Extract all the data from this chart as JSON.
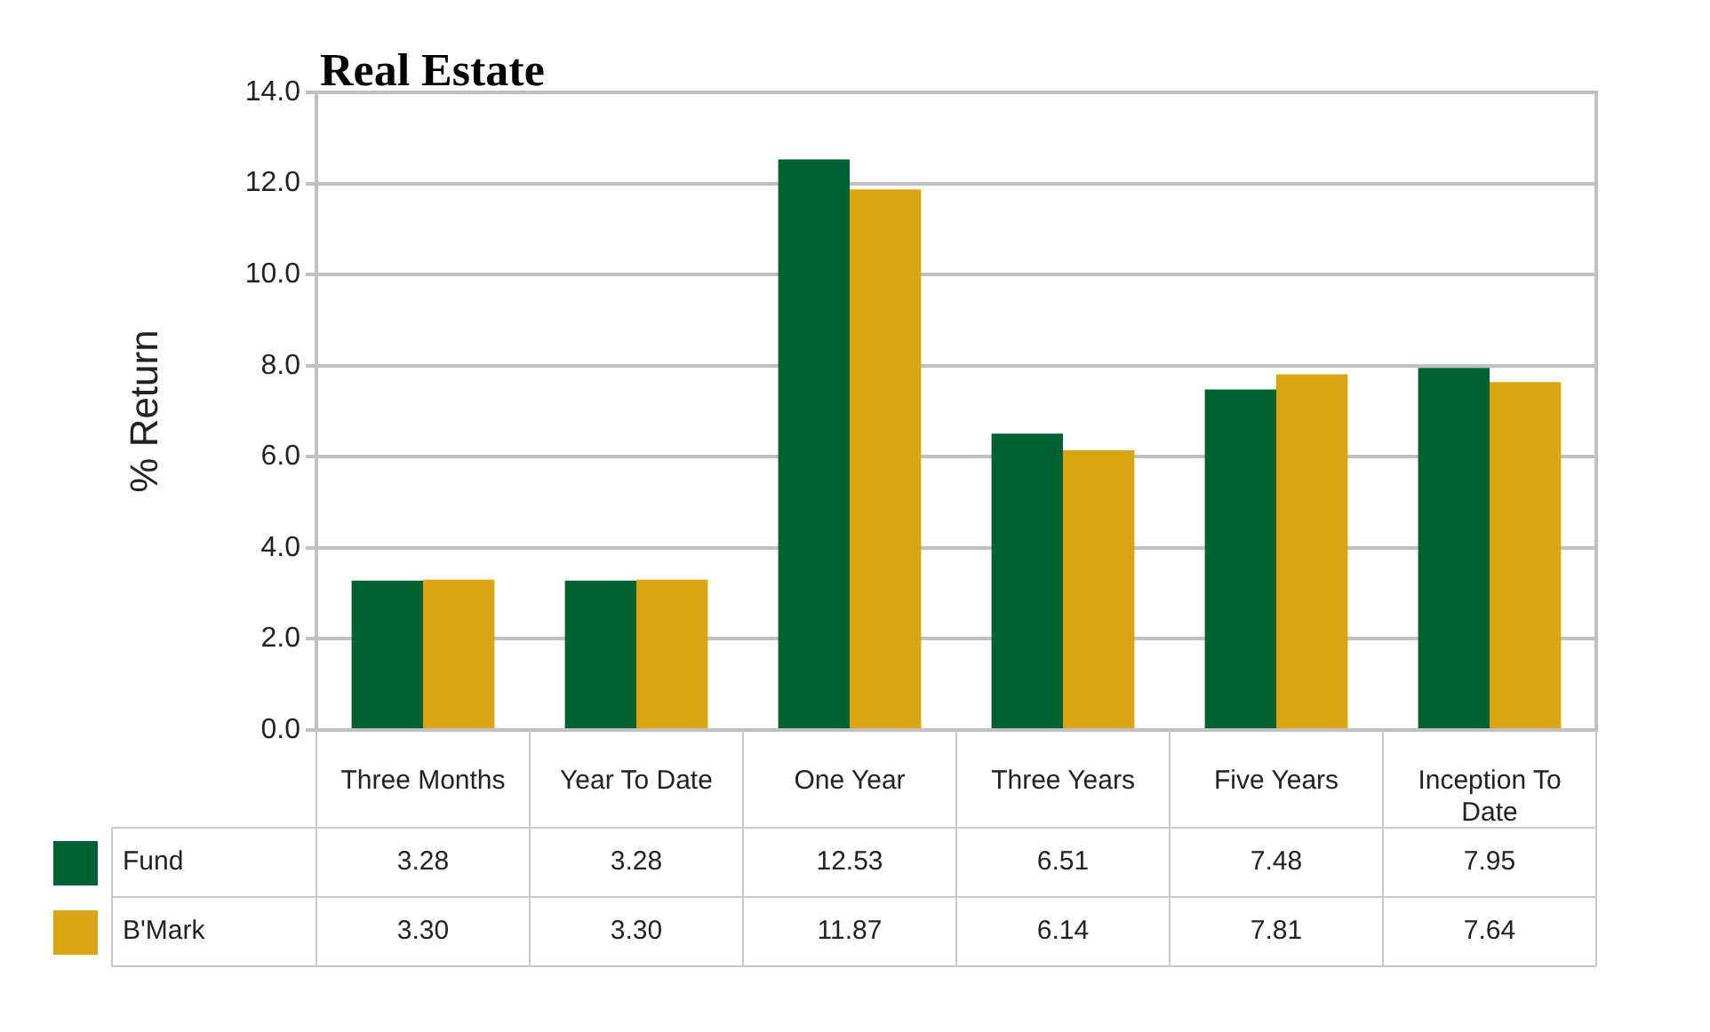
{
  "chart_data": {
    "type": "bar",
    "title": "Real Estate",
    "ylabel": "% Return",
    "categories": [
      "Three Months",
      "Year To Date",
      "One Year",
      "Three Years",
      "Five Years",
      "Inception To Date"
    ],
    "series": [
      {
        "name": "Fund",
        "color": "#006233",
        "values": [
          3.28,
          3.28,
          12.53,
          6.51,
          7.48,
          7.95
        ],
        "value_labels": [
          "3.28",
          "3.28",
          "12.53",
          "6.51",
          "7.48",
          "7.95"
        ]
      },
      {
        "name": "B'Mark",
        "color": "#d9a514",
        "values": [
          3.3,
          3.3,
          11.87,
          6.14,
          7.81,
          7.64
        ],
        "value_labels": [
          "3.30",
          "3.30",
          "11.87",
          "6.14",
          "7.81",
          "7.64"
        ]
      }
    ],
    "ylim": [
      0,
      14
    ],
    "yticks": [
      {
        "value": 0,
        "label": "0.0"
      },
      {
        "value": 2,
        "label": "2.0"
      },
      {
        "value": 4,
        "label": "4.0"
      },
      {
        "value": 6,
        "label": "6.0"
      },
      {
        "value": 8,
        "label": "8.0"
      },
      {
        "value": 10,
        "label": "10.0"
      },
      {
        "value": 12,
        "label": "12.0"
      },
      {
        "value": 14,
        "label": "14.0"
      }
    ],
    "grid": "y",
    "legend": "bottom"
  }
}
